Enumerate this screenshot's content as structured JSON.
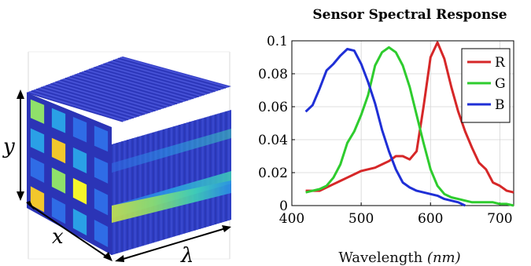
{
  "cube_figure": {
    "axis_labels": {
      "y": "y",
      "x": "x",
      "lambda": "λ"
    },
    "colormap": [
      "#3b3bd0",
      "#2f6ce6",
      "#2aa0e6",
      "#3fcfb6",
      "#8fe06a",
      "#f2c72c",
      "#f5f52a"
    ]
  },
  "chart_data": {
    "type": "line",
    "title": "Sensor Spectral Response",
    "xlabel": "Wavelength",
    "xlabel_unit": "(nm)",
    "xlim": [
      400,
      720
    ],
    "ylim": [
      0,
      0.1
    ],
    "xticks": [
      400,
      500,
      600,
      700
    ],
    "yticks": [
      0,
      0.02,
      0.04,
      0.06,
      0.08,
      0.1
    ],
    "ytick_labels": [
      "0",
      "0.02",
      "0.04",
      "0.06",
      "0.08",
      "0.1"
    ],
    "grid": true,
    "legend_position": "top-right",
    "series": [
      {
        "name": "R",
        "color": "#d62728",
        "x": [
          420,
          430,
          440,
          450,
          460,
          470,
          480,
          490,
          500,
          510,
          520,
          530,
          540,
          550,
          560,
          570,
          580,
          590,
          600,
          610,
          620,
          630,
          640,
          650,
          660,
          670,
          680,
          690,
          700,
          710,
          720
        ],
        "y": [
          0.009,
          0.009,
          0.009,
          0.011,
          0.013,
          0.015,
          0.017,
          0.019,
          0.021,
          0.022,
          0.023,
          0.025,
          0.027,
          0.03,
          0.03,
          0.028,
          0.033,
          0.06,
          0.09,
          0.099,
          0.089,
          0.072,
          0.057,
          0.045,
          0.035,
          0.026,
          0.022,
          0.014,
          0.012,
          0.009,
          0.008
        ]
      },
      {
        "name": "G",
        "color": "#2ecc2e",
        "x": [
          420,
          430,
          440,
          450,
          460,
          470,
          480,
          490,
          500,
          510,
          520,
          530,
          540,
          550,
          560,
          570,
          580,
          590,
          600,
          610,
          620,
          630,
          640,
          650,
          660,
          670,
          680,
          690,
          700,
          710,
          720
        ],
        "y": [
          0.008,
          0.009,
          0.01,
          0.012,
          0.017,
          0.025,
          0.038,
          0.045,
          0.055,
          0.067,
          0.085,
          0.093,
          0.096,
          0.093,
          0.085,
          0.072,
          0.055,
          0.038,
          0.022,
          0.012,
          0.007,
          0.005,
          0.004,
          0.003,
          0.002,
          0.002,
          0.002,
          0.002,
          0.001,
          0.001,
          0.0
        ]
      },
      {
        "name": "B",
        "color": "#1f2fd6",
        "x": [
          420,
          430,
          440,
          450,
          460,
          470,
          480,
          490,
          500,
          510,
          520,
          530,
          540,
          550,
          560,
          570,
          580,
          590,
          600,
          610,
          620,
          630,
          640,
          650
        ],
        "y": [
          0.057,
          0.061,
          0.071,
          0.082,
          0.086,
          0.091,
          0.095,
          0.094,
          0.086,
          0.075,
          0.062,
          0.046,
          0.033,
          0.022,
          0.014,
          0.011,
          0.009,
          0.008,
          0.007,
          0.006,
          0.004,
          0.003,
          0.002,
          0.0
        ]
      }
    ]
  }
}
